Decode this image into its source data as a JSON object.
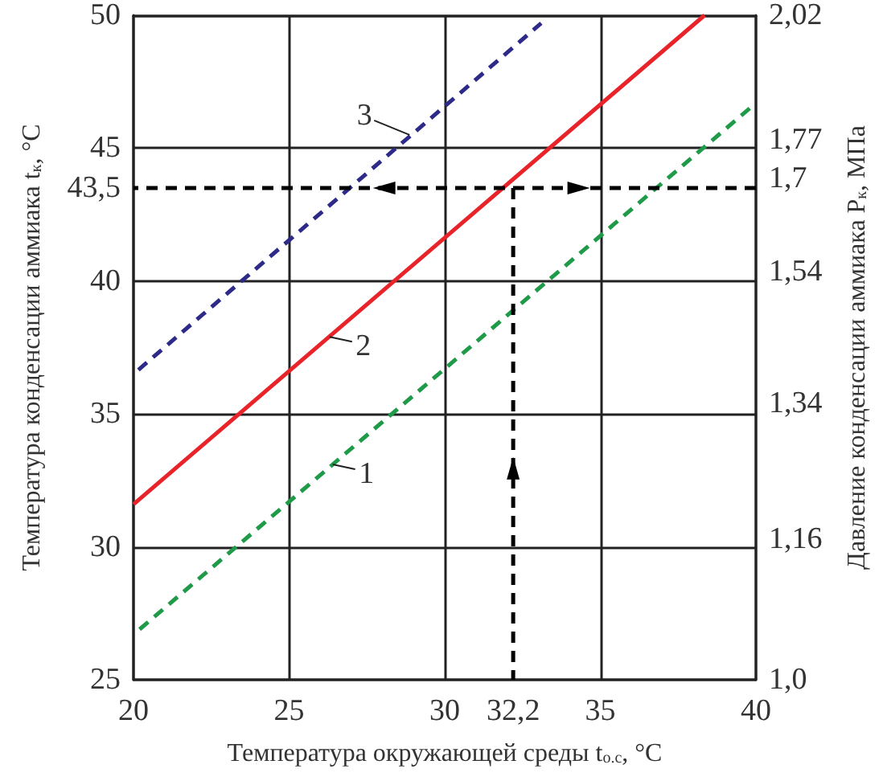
{
  "chart_data": {
    "type": "line",
    "xlabel": "Температура окружающей среды t$_{о.с}$, °C",
    "ylabel": "Температура конденсации аммиака t$_{к}$, °C",
    "y2label": "Давление конденсации аммиака P$_{к}$, МПа",
    "xlim": [
      20,
      40
    ],
    "xticks": [
      20,
      25,
      30,
      {
        "value": 32.2,
        "label": "32,2"
      },
      35,
      40
    ],
    "ylim": [
      25,
      50
    ],
    "yticks": [
      25,
      30,
      35,
      40,
      {
        "value": 43.5,
        "label": "43,5"
      },
      45,
      50
    ],
    "y2lim": [
      1.0,
      2.02
    ],
    "y2ticks": [
      {
        "value": 1.0,
        "label": "1,0"
      },
      {
        "value": 1.16,
        "label": "1,16"
      },
      {
        "value": 1.34,
        "label": "1,34"
      },
      {
        "value": 1.54,
        "label": "1,54"
      },
      {
        "value": 1.7,
        "label": "1,7"
      },
      {
        "value": 1.77,
        "label": "1,77"
      },
      {
        "value": 2.02,
        "label": "2,02"
      }
    ],
    "log": "y2",
    "grid": true,
    "marker": "none",
    "series": [
      {
        "color": "#1f9a48",
        "line_style": "dashed",
        "x": [
          20,
          39.8
        ],
        "values": [
          26.7,
          46.5
        ]
      },
      {
        "color": "#e8232a",
        "line_style": "solid",
        "x": [
          20,
          38.35
        ],
        "values": [
          31.6,
          50
        ]
      },
      {
        "color": "#2e2a8a",
        "line_style": "dashed",
        "x": [
          20,
          33.1
        ],
        "values": [
          36.5,
          49.7
        ]
      },
      {
        "color": "#000000",
        "line_style": "dashed",
        "x": [
          20,
          40
        ],
        "values": [
          43.5,
          43.5
        ]
      },
      {
        "color": "#000000",
        "line_style": "dashed",
        "x": [
          32.2,
          32.2
        ],
        "values": [
          25,
          43.5
        ]
      }
    ],
    "annotations": [
      {
        "text": "1",
        "x": 26.4,
        "y": 33.1
      },
      {
        "text": "2",
        "x": 26.3,
        "y": 37.9
      },
      {
        "text": "3",
        "x": 28.87,
        "y": 45.5
      }
    ]
  }
}
